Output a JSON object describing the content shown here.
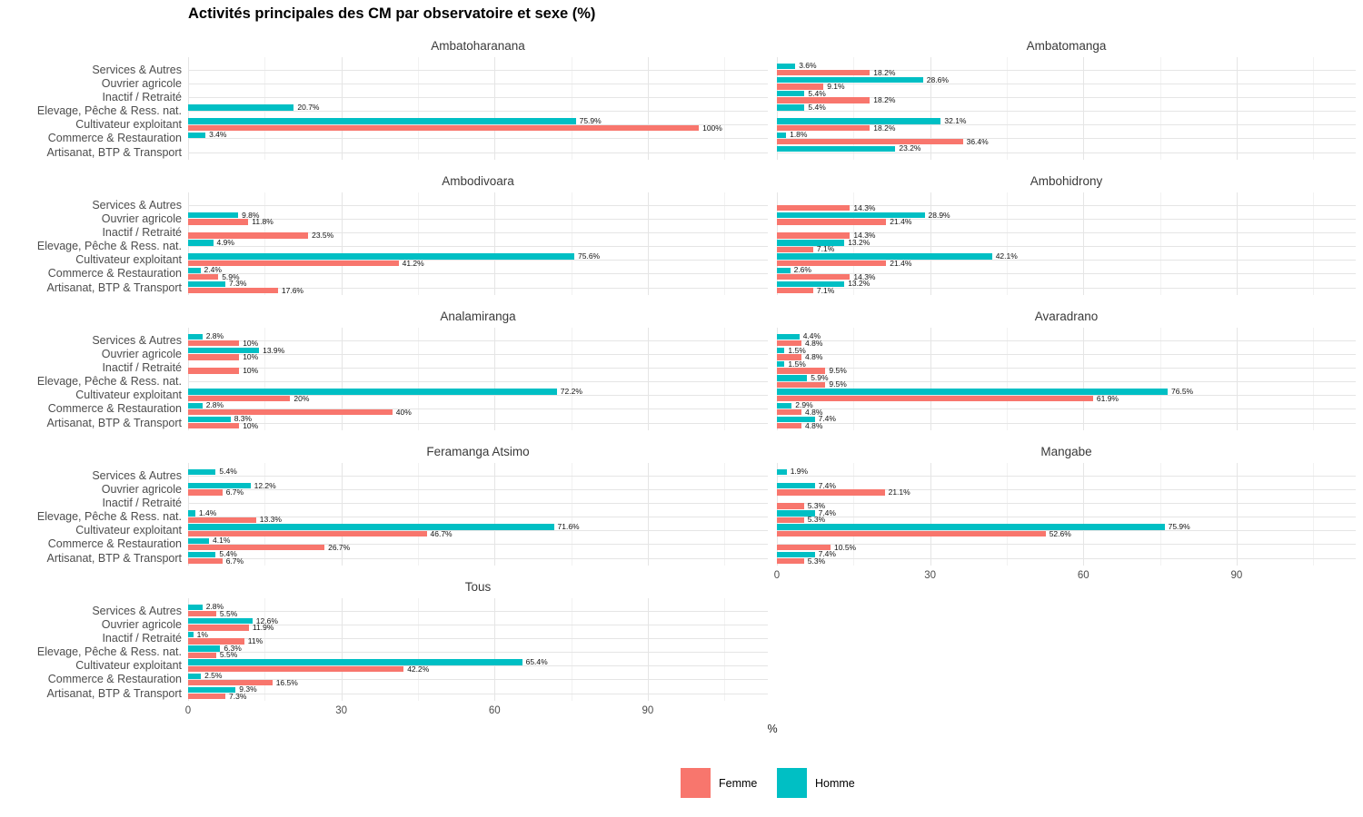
{
  "chart_data": {
    "type": "bar",
    "orientation": "horizontal",
    "title": "Activités principales des CM par observatoire et sexe (%)",
    "xlabel": "%",
    "x_ticks": [
      0,
      30,
      60,
      90
    ],
    "x_minor_ticks": [
      15,
      45,
      75,
      105
    ],
    "x_max": 113.5,
    "grid": true,
    "legend_position": "bottom",
    "categories": [
      "Services & Autres",
      "Ouvrier agricole",
      "Inactif / Retraité",
      "Elevage, Pêche & Ress. nat.",
      "Cultivateur exploitant",
      "Commerce & Restauration",
      "Artisanat, BTP & Transport"
    ],
    "series": [
      {
        "name": "Femme",
        "color": "#F8766D"
      },
      {
        "name": "Homme",
        "color": "#00BFC4"
      }
    ],
    "facets": [
      {
        "name": "Ambatoharanana",
        "homme": [
          null,
          null,
          null,
          20.7,
          75.9,
          3.4,
          null
        ],
        "femme": [
          null,
          null,
          null,
          null,
          100,
          null,
          null
        ]
      },
      {
        "name": "Ambatomanga",
        "homme": [
          3.6,
          28.6,
          5.4,
          5.4,
          32.1,
          1.8,
          23.2
        ],
        "femme": [
          18.2,
          9.1,
          18.2,
          null,
          18.2,
          36.4,
          null
        ]
      },
      {
        "name": "Ambodivoara",
        "homme": [
          null,
          9.8,
          null,
          4.9,
          75.6,
          2.4,
          7.3
        ],
        "femme": [
          null,
          11.8,
          23.5,
          null,
          41.2,
          5.9,
          17.6
        ]
      },
      {
        "name": "Ambohidrony",
        "homme": [
          null,
          28.9,
          null,
          13.2,
          42.1,
          2.6,
          13.2
        ],
        "femme": [
          14.3,
          21.4,
          14.3,
          7.1,
          21.4,
          14.3,
          7.1
        ]
      },
      {
        "name": "Analamiranga",
        "homme": [
          2.8,
          13.9,
          null,
          null,
          72.2,
          2.8,
          8.3
        ],
        "femme": [
          10,
          10,
          10,
          null,
          20,
          40,
          10
        ]
      },
      {
        "name": "Avaradrano",
        "homme": [
          4.4,
          1.5,
          1.5,
          5.9,
          76.5,
          2.9,
          7.4
        ],
        "femme": [
          4.8,
          4.8,
          9.5,
          9.5,
          61.9,
          4.8,
          4.8
        ]
      },
      {
        "name": "Feramanga Atsimo",
        "homme": [
          5.4,
          12.2,
          null,
          1.4,
          71.6,
          4.1,
          5.4
        ],
        "femme": [
          null,
          6.7,
          null,
          13.3,
          46.7,
          26.7,
          6.7
        ]
      },
      {
        "name": "Mangabe",
        "homme": [
          1.9,
          7.4,
          null,
          7.4,
          75.9,
          null,
          7.4
        ],
        "femme": [
          null,
          21.1,
          5.3,
          5.3,
          52.6,
          10.5,
          5.3
        ]
      },
      {
        "name": "Tous",
        "homme": [
          2.8,
          12.6,
          1,
          6.3,
          65.4,
          2.5,
          9.3
        ],
        "femme": [
          5.5,
          11.9,
          11,
          5.5,
          42.2,
          16.5,
          7.3
        ]
      }
    ]
  }
}
